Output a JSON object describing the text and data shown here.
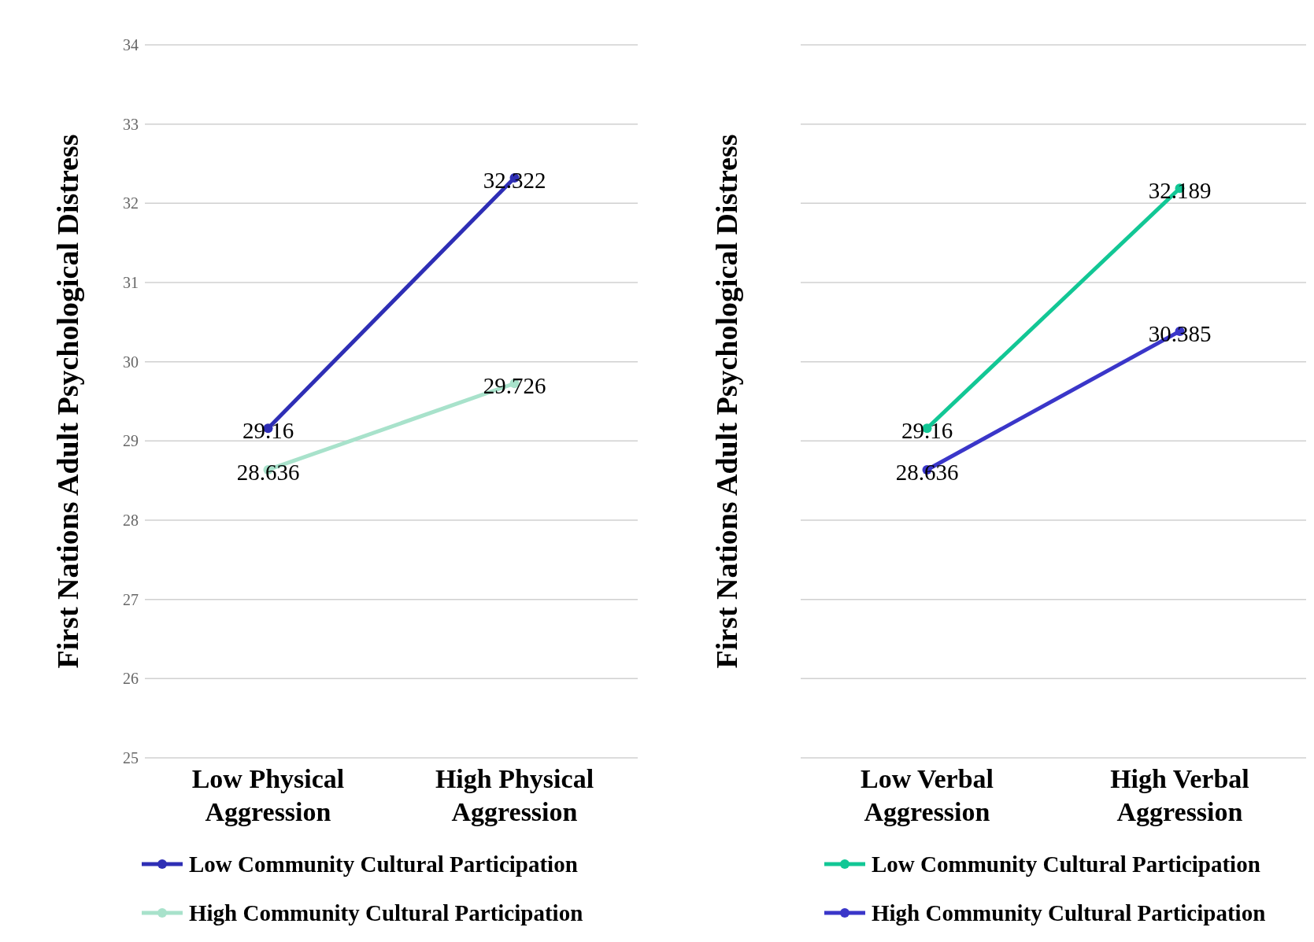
{
  "chart_data": [
    {
      "type": "line",
      "ylabel": "First Nations Adult Psychological Distress",
      "categories": [
        "Low Physical Aggression",
        "High Physical Aggression"
      ],
      "ylim": [
        25,
        34
      ],
      "yticks": [
        25,
        26,
        27,
        28,
        29,
        30,
        31,
        32,
        33,
        34
      ],
      "grid": "y",
      "legend": "bottom",
      "marker": "circle",
      "line_style": "solid",
      "data_labels": true,
      "series": [
        {
          "name": "Low Community Cultural Participation",
          "color": "#2e2eb5",
          "values": [
            29.16,
            32.322
          ]
        },
        {
          "name": "High Community Cultural Participation",
          "color": "#a8e2cb",
          "values": [
            28.636,
            29.726
          ]
        }
      ]
    },
    {
      "type": "line",
      "ylabel": "First Nations Adult Psychological Distress",
      "categories": [
        "Low Verbal Aggression",
        "High Verbal Aggression"
      ],
      "ylim": [
        25,
        34
      ],
      "yticks": [
        {
          "value": 25,
          "label": null
        },
        {
          "value": 26,
          "label": null
        },
        {
          "value": 27,
          "label": null
        },
        {
          "value": 28,
          "label": null
        },
        {
          "value": 29,
          "label": null
        },
        {
          "value": 30,
          "label": null
        },
        {
          "value": 31,
          "label": null
        },
        {
          "value": 32,
          "label": null
        },
        {
          "value": 33,
          "label": null
        },
        {
          "value": 34,
          "label": null
        }
      ],
      "grid": "y",
      "tick_labels": "x",
      "legend": "bottom",
      "marker": "circle",
      "line_style": "solid",
      "data_labels": true,
      "series": [
        {
          "name": "Low Community Cultural Participation",
          "color": "#12c795",
          "values": [
            29.16,
            32.189
          ]
        },
        {
          "name": "High Community Cultural Participation",
          "color": "#3a36c9",
          "values": [
            28.636,
            30.385
          ]
        }
      ]
    }
  ]
}
